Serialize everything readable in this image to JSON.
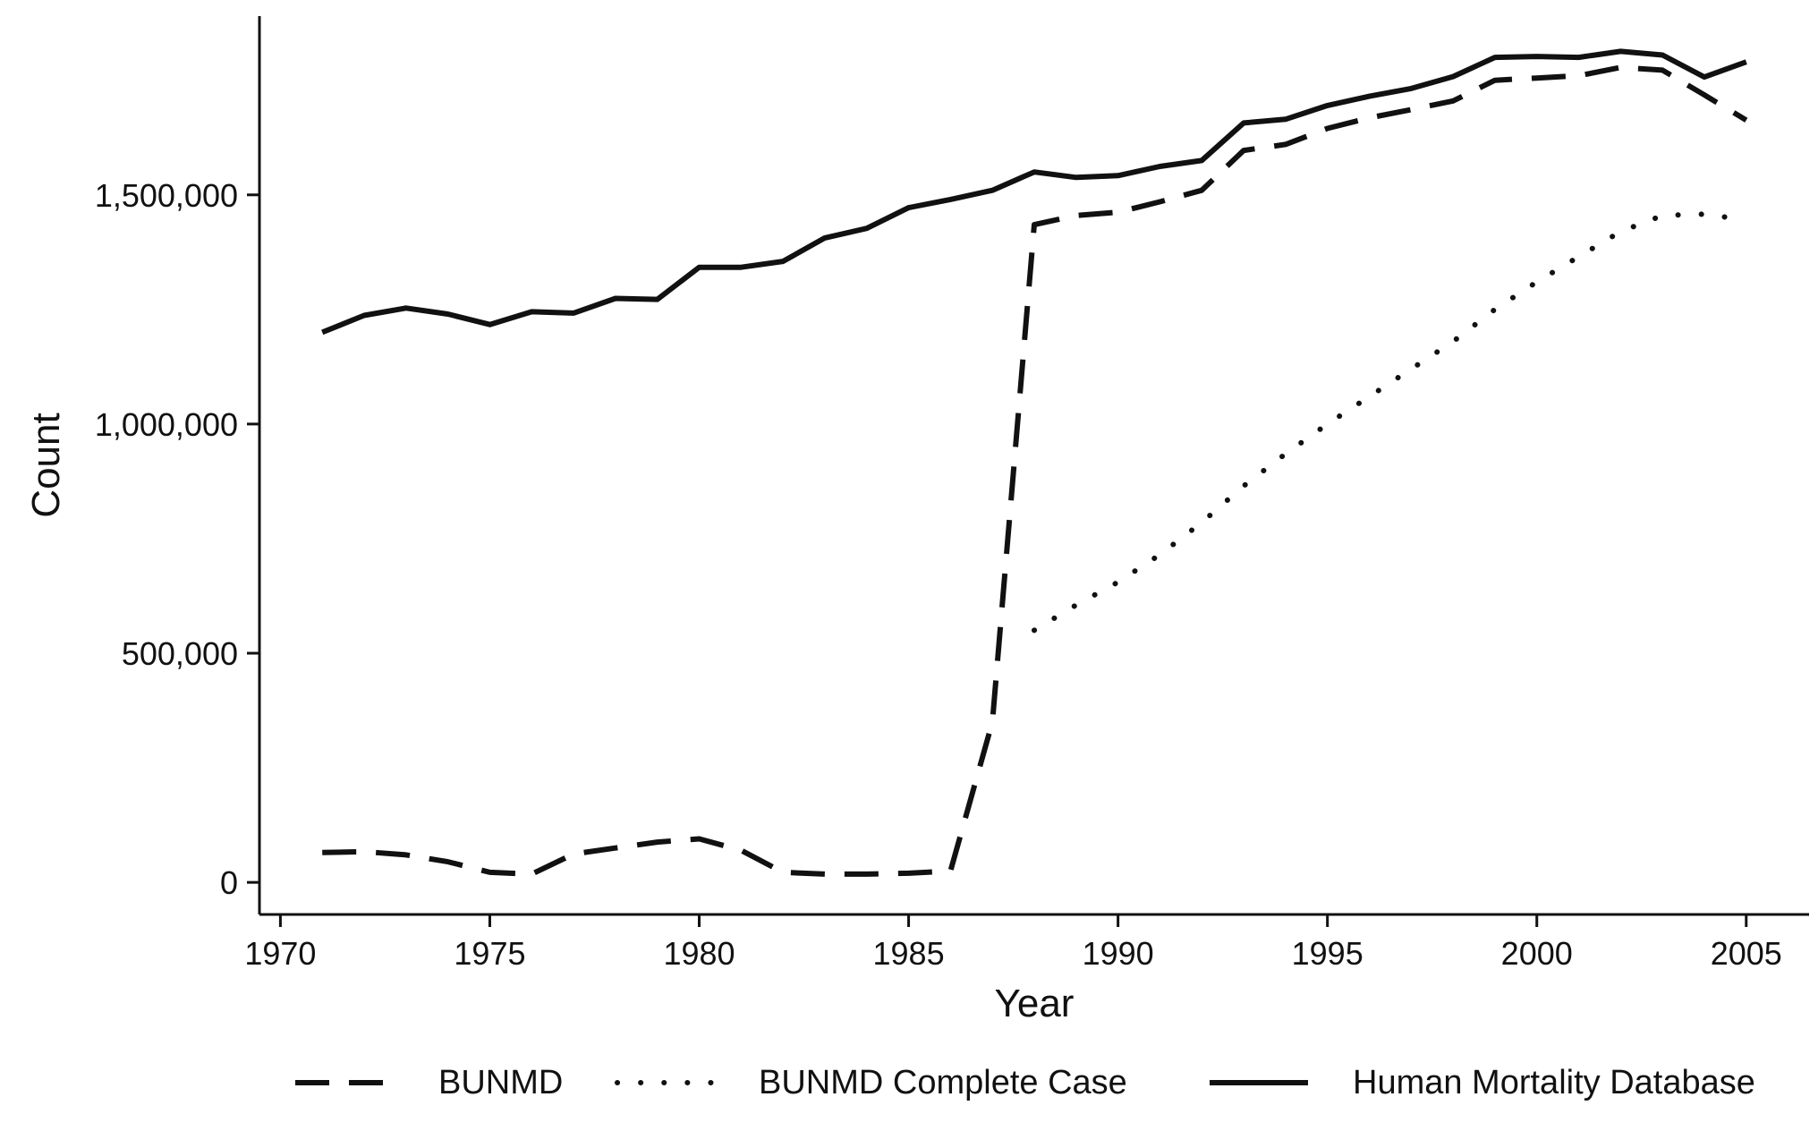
{
  "chart_data": {
    "type": "line",
    "title": "",
    "xlabel": "Year",
    "ylabel": "Count",
    "xlim": [
      1969.5,
      2006.5
    ],
    "ylim": [
      -70000,
      1890000
    ],
    "x_ticks": [
      1970,
      1975,
      1980,
      1985,
      1990,
      1995,
      2000,
      2005
    ],
    "y_ticks": [
      0,
      500000,
      1000000,
      1500000
    ],
    "y_tick_labels": [
      "0",
      "500,000",
      "1,000,000",
      "1,500,000"
    ],
    "grid": false,
    "legend_position": "bottom",
    "series": [
      {
        "name": "BUNMD",
        "style": "dashed",
        "color": "#111111",
        "points": [
          [
            1971,
            65000
          ],
          [
            1972,
            67000
          ],
          [
            1973,
            60000
          ],
          [
            1974,
            45000
          ],
          [
            1975,
            22000
          ],
          [
            1976,
            18000
          ],
          [
            1977,
            62000
          ],
          [
            1978,
            75000
          ],
          [
            1979,
            88000
          ],
          [
            1980,
            95000
          ],
          [
            1981,
            70000
          ],
          [
            1982,
            22000
          ],
          [
            1983,
            18000
          ],
          [
            1984,
            18000
          ],
          [
            1985,
            20000
          ],
          [
            1986,
            25000
          ],
          [
            1987,
            350000
          ],
          [
            1988,
            1435000
          ],
          [
            1989,
            1455000
          ],
          [
            1990,
            1462000
          ],
          [
            1991,
            1485000
          ],
          [
            1992,
            1510000
          ],
          [
            1993,
            1597000
          ],
          [
            1994,
            1610000
          ],
          [
            1995,
            1645000
          ],
          [
            1996,
            1668000
          ],
          [
            1997,
            1686000
          ],
          [
            1998,
            1705000
          ],
          [
            1999,
            1750000
          ],
          [
            2000,
            1755000
          ],
          [
            2001,
            1760000
          ],
          [
            2002,
            1778000
          ],
          [
            2003,
            1772000
          ],
          [
            2004,
            1718000
          ],
          [
            2005,
            1663000
          ]
        ]
      },
      {
        "name": "BUNMD Complete Case",
        "style": "dotted",
        "color": "#111111",
        "points": [
          [
            1988,
            550000
          ],
          [
            1989,
            605000
          ],
          [
            1990,
            655000
          ],
          [
            1991,
            715000
          ],
          [
            1992,
            785000
          ],
          [
            1993,
            865000
          ],
          [
            1994,
            935000
          ],
          [
            1995,
            1000000
          ],
          [
            1996,
            1060000
          ],
          [
            1997,
            1120000
          ],
          [
            1998,
            1180000
          ],
          [
            1999,
            1250000
          ],
          [
            2000,
            1310000
          ],
          [
            2001,
            1365000
          ],
          [
            2002,
            1420000
          ],
          [
            2003,
            1455000
          ],
          [
            2004,
            1458000
          ],
          [
            2005,
            1445000
          ]
        ]
      },
      {
        "name": "Human Mortality Database",
        "style": "solid",
        "color": "#111111",
        "points": [
          [
            1971,
            1200000
          ],
          [
            1972,
            1237000
          ],
          [
            1973,
            1253000
          ],
          [
            1974,
            1240000
          ],
          [
            1975,
            1217000
          ],
          [
            1976,
            1245000
          ],
          [
            1977,
            1242000
          ],
          [
            1978,
            1274000
          ],
          [
            1979,
            1272000
          ],
          [
            1980,
            1342000
          ],
          [
            1981,
            1342000
          ],
          [
            1982,
            1355000
          ],
          [
            1983,
            1406000
          ],
          [
            1984,
            1427000
          ],
          [
            1985,
            1472000
          ],
          [
            1986,
            1490000
          ],
          [
            1987,
            1510000
          ],
          [
            1988,
            1550000
          ],
          [
            1989,
            1538000
          ],
          [
            1990,
            1542000
          ],
          [
            1991,
            1562000
          ],
          [
            1992,
            1575000
          ],
          [
            1993,
            1657000
          ],
          [
            1994,
            1665000
          ],
          [
            1995,
            1695000
          ],
          [
            1996,
            1715000
          ],
          [
            1997,
            1732000
          ],
          [
            1998,
            1758000
          ],
          [
            1999,
            1800000
          ],
          [
            2000,
            1802000
          ],
          [
            2001,
            1800000
          ],
          [
            2002,
            1813000
          ],
          [
            2003,
            1805000
          ],
          [
            2004,
            1757000
          ],
          [
            2005,
            1790000
          ]
        ]
      }
    ]
  }
}
